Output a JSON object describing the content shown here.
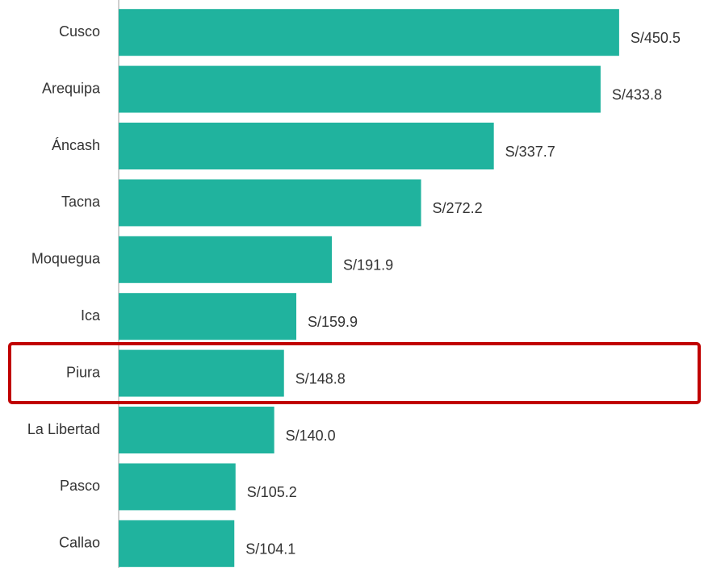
{
  "chart_data": {
    "type": "barh",
    "categories": [
      "Cusco",
      "Arequipa",
      "Áncash",
      "Tacna",
      "Moquegua",
      "Ica",
      "Piura",
      "La Libertad",
      "Pasco",
      "Callao"
    ],
    "values": [
      450.5,
      433.8,
      337.7,
      272.2,
      191.9,
      159.9,
      148.8,
      140.0,
      105.2,
      104.1
    ],
    "value_labels": [
      "S/450.5",
      "S/433.8",
      "S/337.7",
      "S/272.2",
      "S/191.9",
      "S/159.9",
      "S/148.8",
      "S/140.0",
      "S/105.2",
      "S/104.1"
    ],
    "color": "#20b39e",
    "xlim": [
      0,
      500
    ]
  }
}
